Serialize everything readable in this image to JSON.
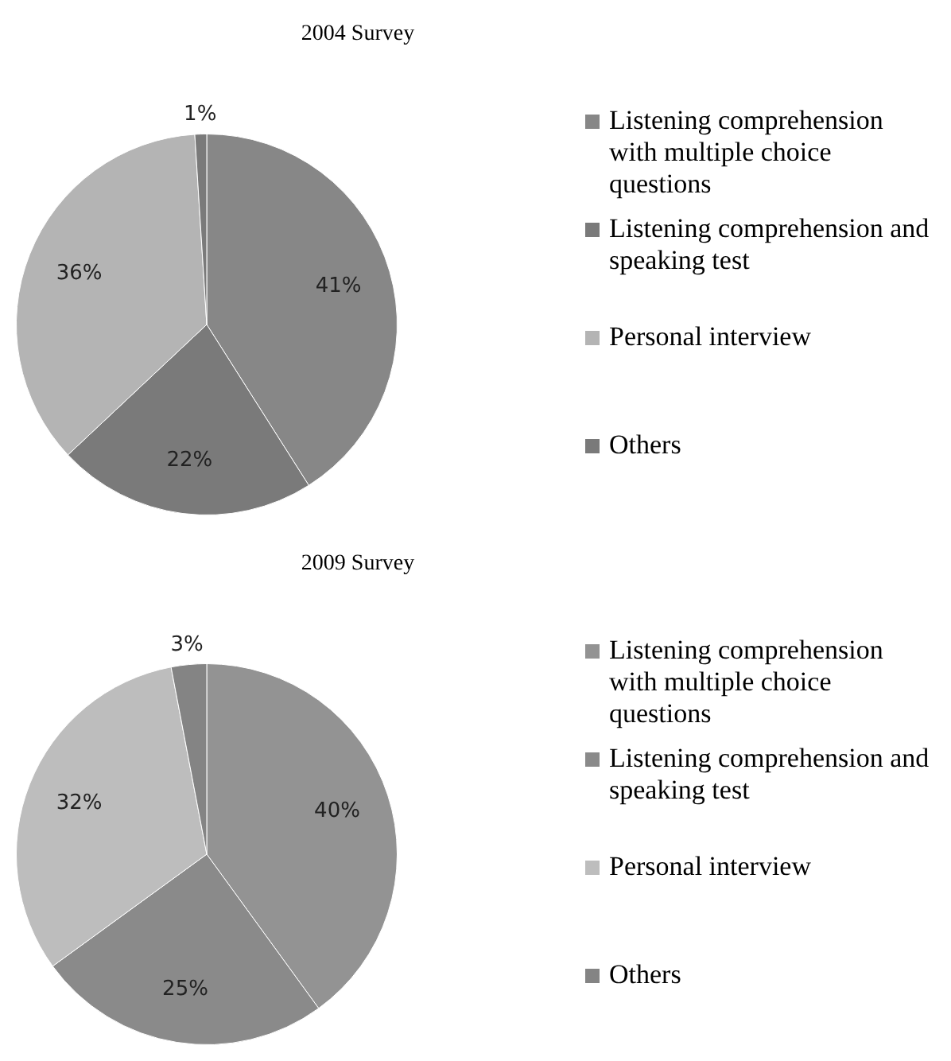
{
  "chart_data": [
    {
      "type": "pie",
      "title": "2004 Survey",
      "categories": [
        "Listening comprehension with multiple choice questions",
        "Listening comprehension and speaking test",
        "Personal interview",
        "Others"
      ],
      "values": [
        41,
        22,
        36,
        1
      ],
      "colors": [
        "#878787",
        "#7a7a7a",
        "#b4b4b4",
        "#7a7a7a"
      ],
      "value_labels": [
        "41%",
        "22%",
        "36%",
        "1%"
      ],
      "legend": "right"
    },
    {
      "type": "pie",
      "title": "2009 Survey",
      "categories": [
        "Listening comprehension with multiple choice questions",
        "Listening comprehension and speaking test",
        "Personal interview",
        "Others"
      ],
      "values": [
        40,
        25,
        32,
        3
      ],
      "colors": [
        "#939393",
        "#8a8a8a",
        "#bdbdbd",
        "#848484"
      ],
      "value_labels": [
        "40%",
        "25%",
        "32%",
        "3%"
      ],
      "legend": "right"
    }
  ]
}
